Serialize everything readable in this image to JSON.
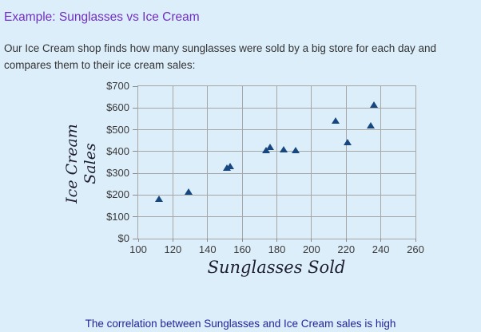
{
  "page": {
    "background": "#ddeefb",
    "title": "Example: Sunglasses vs Ice Cream",
    "title_color": "#7130c3",
    "intro": "Our Ice Cream shop finds how many sunglasses were sold by a big store for each day and compares them to their ice cream sales:",
    "conclusion": "The correlation between Sunglasses and Ice Cream sales is high",
    "conclusion_color": "#23239a"
  },
  "chart_data": {
    "type": "scatter",
    "title": "",
    "xlabel": "Sunglasses Sold",
    "ylabel": "Ice Cream Sales",
    "ylabel_lines": [
      "Ice Cream",
      "Sales"
    ],
    "xlim": [
      100,
      260
    ],
    "ylim": [
      0,
      700
    ],
    "xtick_labels": [
      "100",
      "120",
      "140",
      "160",
      "180",
      "200",
      "220",
      "240",
      "260"
    ],
    "ytick_labels": [
      "$0",
      "$100",
      "$200",
      "$300",
      "$400",
      "$500",
      "$600",
      "$700"
    ],
    "grid": true,
    "legend_position": "none",
    "marker": "triangle-up",
    "marker_color": "#17477e",
    "grid_color": "#a6a6a6",
    "points": [
      {
        "x": 112,
        "y": 185
      },
      {
        "x": 129,
        "y": 215
      },
      {
        "x": 151,
        "y": 325
      },
      {
        "x": 153,
        "y": 332
      },
      {
        "x": 174,
        "y": 406
      },
      {
        "x": 176,
        "y": 421
      },
      {
        "x": 184,
        "y": 412
      },
      {
        "x": 191,
        "y": 408
      },
      {
        "x": 214,
        "y": 544
      },
      {
        "x": 221,
        "y": 445
      },
      {
        "x": 234,
        "y": 522
      },
      {
        "x": 236,
        "y": 614
      }
    ]
  }
}
